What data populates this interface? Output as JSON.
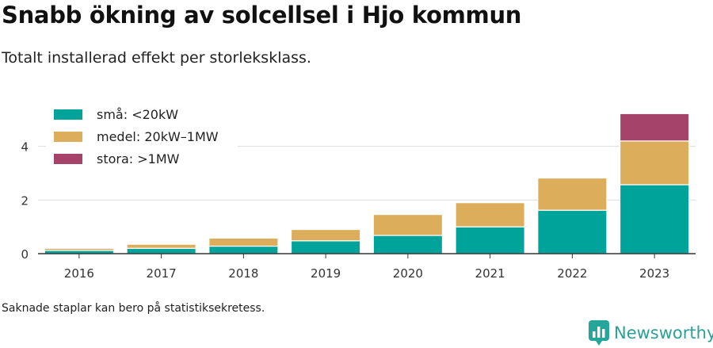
{
  "title": "Snabb ökning av solcellsel i Hjo kommun",
  "subtitle": "Totalt installerad effekt per storleksklass.",
  "footnote": "Saknade staplar kan bero på statistiksekretess.",
  "brand": {
    "name": "Newsworthy",
    "icon": "newsworthy-logo-icon",
    "color": "#26a69a"
  },
  "chart_data": {
    "type": "bar",
    "stacked": true,
    "categories": [
      "2016",
      "2017",
      "2018",
      "2019",
      "2020",
      "2021",
      "2022",
      "2023"
    ],
    "series": [
      {
        "name": "små: <20kW",
        "color": "#00a39a",
        "values": [
          0.12,
          0.2,
          0.28,
          0.48,
          0.68,
          1.0,
          1.62,
          2.57
        ]
      },
      {
        "name": "medel: 20kW–1MW",
        "color": "#dcad5b",
        "values": [
          0.08,
          0.15,
          0.3,
          0.42,
          0.78,
          0.9,
          1.2,
          1.63
        ]
      },
      {
        "name": "stora: >1MW",
        "color": "#a6436a",
        "values": [
          0,
          0,
          0,
          0,
          0,
          0,
          0,
          1.02
        ]
      }
    ],
    "ylim": [
      0,
      5.2
    ],
    "yticks": [
      0,
      2,
      4
    ],
    "grid": true,
    "legend": "top-left"
  }
}
